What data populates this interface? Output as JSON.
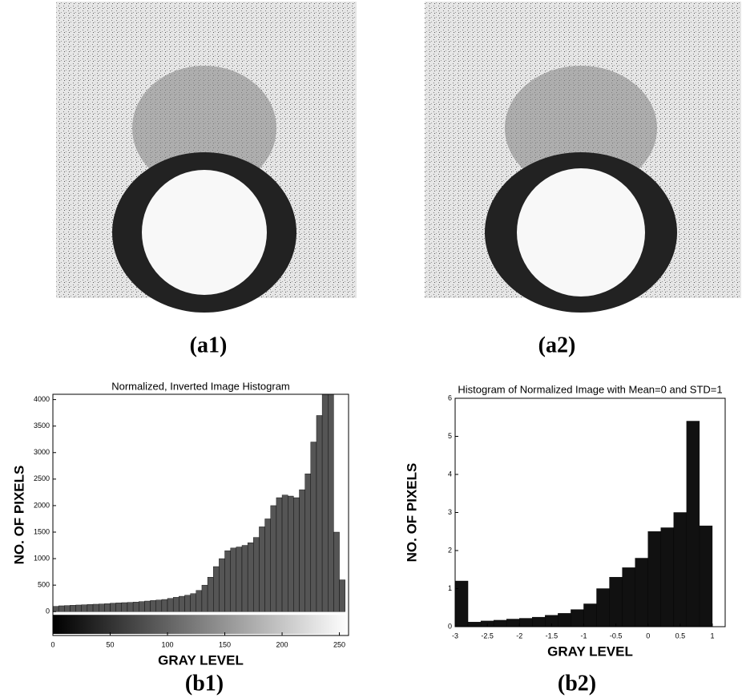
{
  "images": [
    {
      "caption": "(a1)"
    },
    {
      "caption": "(a2)"
    }
  ],
  "chart_data": [
    {
      "type": "histogram",
      "title": "Normalized, Inverted Image Histogram",
      "caption": "(b1)",
      "xlabel": "GRAY LEVEL",
      "ylabel": "NO. OF PIXELS",
      "color": "#555555",
      "colorbar": true,
      "bins": [
        0,
        5,
        10,
        15,
        20,
        25,
        30,
        35,
        40,
        45,
        50,
        55,
        60,
        65,
        70,
        75,
        80,
        85,
        90,
        95,
        100,
        105,
        110,
        115,
        120,
        125,
        130,
        135,
        140,
        145,
        150,
        155,
        160,
        165,
        170,
        175,
        180,
        185,
        190,
        195,
        200,
        205,
        210,
        215,
        220,
        225,
        230,
        235,
        240,
        245,
        250,
        255
      ],
      "values": [
        100,
        110,
        115,
        120,
        125,
        130,
        135,
        140,
        145,
        150,
        160,
        165,
        170,
        175,
        180,
        190,
        200,
        210,
        220,
        230,
        250,
        270,
        290,
        310,
        340,
        400,
        500,
        650,
        850,
        1000,
        1150,
        1200,
        1220,
        1250,
        1300,
        1400,
        1600,
        1750,
        2000,
        2150,
        2200,
        2180,
        2150,
        2300,
        2600,
        3200,
        3700,
        4100,
        4100,
        1500,
        600
      ],
      "xlim": [
        0,
        258
      ],
      "ylim": [
        -450,
        4100
      ],
      "xticks": [
        0,
        50,
        100,
        150,
        200,
        250
      ],
      "yticks": [
        0,
        500,
        1000,
        1500,
        2000,
        2500,
        3000,
        3500,
        4000
      ]
    },
    {
      "type": "histogram",
      "title": "Histogram of Normalized Image with Mean=0 and STD=1",
      "caption": "(b2)",
      "xlabel": "GRAY LEVEL",
      "ylabel": "NO. OF PIXELS",
      "color": "#111111",
      "colorbar": false,
      "bins": [
        -3,
        -2.8,
        -2.6,
        -2.4,
        -2.2,
        -2,
        -1.8,
        -1.6,
        -1.4,
        -1.2,
        -1,
        -0.8,
        -0.6,
        -0.4,
        -0.2,
        0,
        0.2,
        0.4,
        0.6,
        0.8,
        1
      ],
      "values": [
        1.2,
        0.12,
        0.15,
        0.17,
        0.2,
        0.22,
        0.25,
        0.3,
        0.35,
        0.45,
        0.6,
        1.0,
        1.3,
        1.55,
        1.8,
        2.5,
        2.6,
        3.0,
        5.4,
        2.65
      ],
      "xlim": [
        -3,
        1.2
      ],
      "ylim": [
        0,
        6
      ],
      "xticks": [
        -3,
        -2.5,
        -2,
        -1.5,
        -1,
        -0.5,
        0,
        0.5,
        1
      ],
      "yticks": [
        0,
        1,
        2,
        3,
        4,
        5,
        6
      ]
    }
  ]
}
